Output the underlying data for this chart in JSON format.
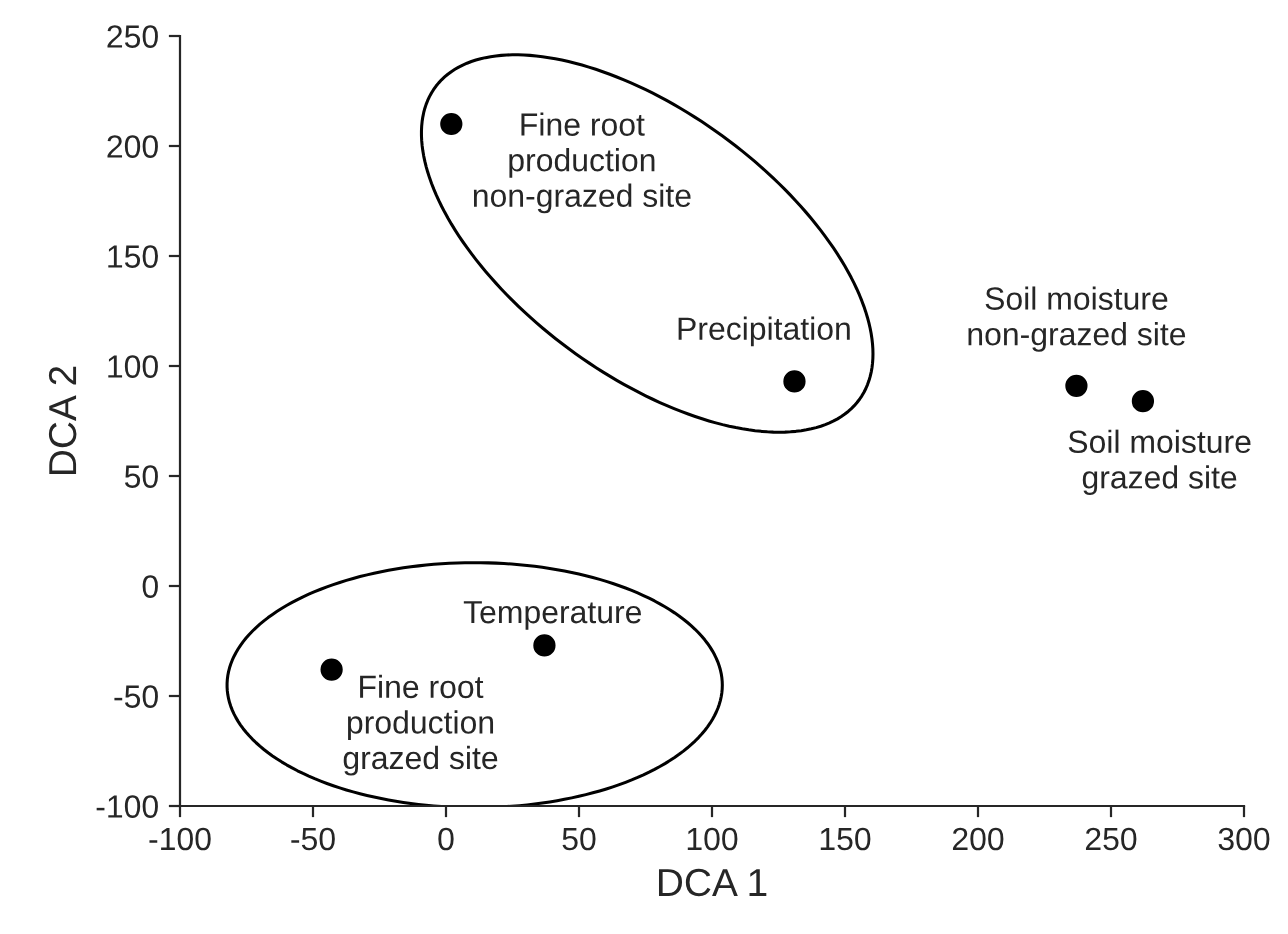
{
  "chart_data": {
    "type": "scatter",
    "xlabel": "DCA 1",
    "ylabel": "DCA 2",
    "series": [
      {
        "color": "#000000",
        "x": [
          2,
          131,
          237,
          262,
          37,
          -43
        ],
        "values": [
          210,
          93,
          91,
          84,
          -27,
          -38
        ]
      }
    ],
    "marker": "circle",
    "xlim": [
      -100,
      300
    ],
    "xticks": [
      -100,
      -50,
      0,
      50,
      100,
      150,
      200,
      250,
      300
    ],
    "ylim": [
      -100,
      250
    ],
    "yticks": [
      -100,
      -50,
      0,
      50,
      100,
      150,
      200,
      250
    ],
    "grid": false,
    "legend": false,
    "annotations": [
      {
        "text": "Fine root\nproduction\nnon-grazed site",
        "x": 2,
        "y": 210
      },
      {
        "text": "Precipitation",
        "x": 131,
        "y": 93
      },
      {
        "text": "Soil moisture\nnon-grazed site",
        "x": 237,
        "y": 91
      },
      {
        "text": "Soil moisture\ngrazed site",
        "x": 262,
        "y": 84
      },
      {
        "text": "Temperature",
        "x": 37,
        "y": -27
      },
      {
        "text": "Fine root\nproduction\ngrazed site",
        "x": -43,
        "y": -38
      }
    ]
  }
}
